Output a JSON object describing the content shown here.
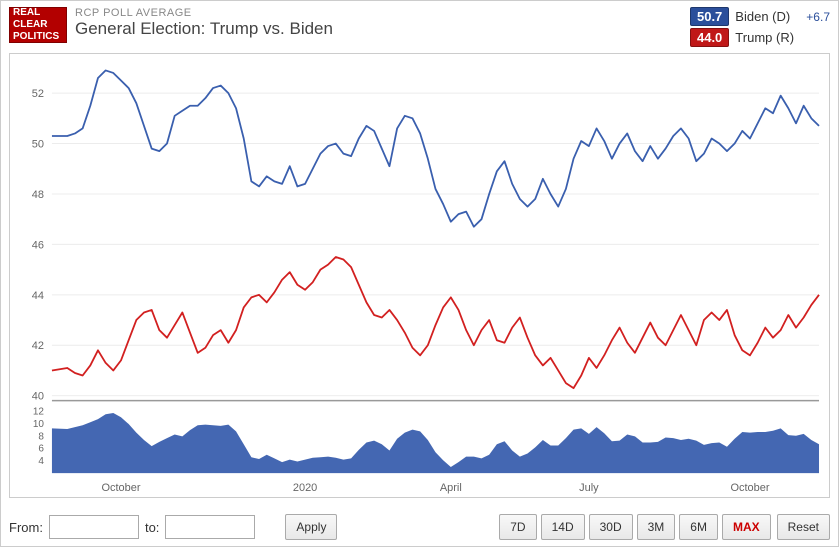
{
  "header": {
    "logo_lines": [
      "REAL",
      "CLEAR",
      "POLITICS"
    ],
    "subtitle": "RCP POLL AVERAGE",
    "title": "General Election: Trump vs. Biden"
  },
  "legend": [
    {
      "value": "50.7",
      "name": "Biden (D)",
      "spread": "+6.7",
      "box_color": "#2b4f9b",
      "spread_color": "#2b4f9b"
    },
    {
      "value": "44.0",
      "name": "Trump (R)",
      "spread": "",
      "box_color": "#c01818",
      "spread_color": "#c01818"
    }
  ],
  "chart": {
    "type": "line",
    "background_color": "#ffffff",
    "grid_color": "#ececec",
    "axis_text_color": "#666666",
    "axis_font_size": 11,
    "main": {
      "ylim": [
        40,
        53
      ],
      "yticks": [
        40,
        42,
        44,
        46,
        48,
        50,
        52
      ],
      "line_width": 1.8,
      "series": [
        {
          "name": "biden",
          "color": "#3a5fae",
          "points": [
            [
              0,
              50.3
            ],
            [
              2,
              50.3
            ],
            [
              3,
              50.4
            ],
            [
              4,
              50.6
            ],
            [
              5,
              51.5
            ],
            [
              6,
              52.6
            ],
            [
              7,
              52.9
            ],
            [
              8,
              52.8
            ],
            [
              9,
              52.5
            ],
            [
              10,
              52.2
            ],
            [
              11,
              51.6
            ],
            [
              12,
              50.7
            ],
            [
              13,
              49.8
            ],
            [
              14,
              49.7
            ],
            [
              15,
              50.0
            ],
            [
              16,
              51.1
            ],
            [
              17,
              51.3
            ],
            [
              18,
              51.5
            ],
            [
              19,
              51.5
            ],
            [
              20,
              51.8
            ],
            [
              21,
              52.2
            ],
            [
              22,
              52.3
            ],
            [
              23,
              52.0
            ],
            [
              24,
              51.4
            ],
            [
              25,
              50.2
            ],
            [
              26,
              48.5
            ],
            [
              27,
              48.3
            ],
            [
              28,
              48.7
            ],
            [
              29,
              48.5
            ],
            [
              30,
              48.4
            ],
            [
              31,
              49.1
            ],
            [
              32,
              48.3
            ],
            [
              33,
              48.4
            ],
            [
              34,
              49.0
            ],
            [
              35,
              49.6
            ],
            [
              36,
              49.9
            ],
            [
              37,
              50.0
            ],
            [
              38,
              49.6
            ],
            [
              39,
              49.5
            ],
            [
              40,
              50.2
            ],
            [
              41,
              50.7
            ],
            [
              42,
              50.5
            ],
            [
              43,
              49.8
            ],
            [
              44,
              49.1
            ],
            [
              45,
              50.6
            ],
            [
              46,
              51.1
            ],
            [
              47,
              51.0
            ],
            [
              48,
              50.4
            ],
            [
              49,
              49.4
            ],
            [
              50,
              48.2
            ],
            [
              51,
              47.6
            ],
            [
              52,
              46.9
            ],
            [
              53,
              47.2
            ],
            [
              54,
              47.3
            ],
            [
              55,
              46.7
            ],
            [
              56,
              47.0
            ],
            [
              57,
              48.0
            ],
            [
              58,
              48.9
            ],
            [
              59,
              49.3
            ],
            [
              60,
              48.4
            ],
            [
              61,
              47.8
            ],
            [
              62,
              47.5
            ],
            [
              63,
              47.8
            ],
            [
              64,
              48.6
            ],
            [
              65,
              48.0
            ],
            [
              66,
              47.5
            ],
            [
              67,
              48.2
            ],
            [
              68,
              49.4
            ],
            [
              69,
              50.1
            ],
            [
              70,
              49.9
            ],
            [
              71,
              50.6
            ],
            [
              72,
              50.1
            ],
            [
              73,
              49.4
            ],
            [
              74,
              50.0
            ],
            [
              75,
              50.4
            ],
            [
              76,
              49.7
            ],
            [
              77,
              49.3
            ],
            [
              78,
              49.9
            ],
            [
              79,
              49.4
            ],
            [
              80,
              49.8
            ],
            [
              81,
              50.3
            ],
            [
              82,
              50.6
            ],
            [
              83,
              50.2
            ],
            [
              84,
              49.3
            ],
            [
              85,
              49.6
            ],
            [
              86,
              50.2
            ],
            [
              87,
              50.0
            ],
            [
              88,
              49.7
            ],
            [
              89,
              50.0
            ],
            [
              90,
              50.5
            ],
            [
              91,
              50.2
            ],
            [
              92,
              50.8
            ],
            [
              93,
              51.4
            ],
            [
              94,
              51.2
            ],
            [
              95,
              51.9
            ],
            [
              96,
              51.4
            ],
            [
              97,
              50.8
            ],
            [
              98,
              51.5
            ],
            [
              99,
              51.0
            ],
            [
              100,
              50.7
            ]
          ]
        },
        {
          "name": "trump",
          "color": "#d22020",
          "points": [
            [
              0,
              41.0
            ],
            [
              2,
              41.1
            ],
            [
              3,
              40.9
            ],
            [
              4,
              40.8
            ],
            [
              5,
              41.2
            ],
            [
              6,
              41.8
            ],
            [
              7,
              41.3
            ],
            [
              8,
              41.0
            ],
            [
              9,
              41.4
            ],
            [
              10,
              42.2
            ],
            [
              11,
              43.0
            ],
            [
              12,
              43.3
            ],
            [
              13,
              43.4
            ],
            [
              14,
              42.6
            ],
            [
              15,
              42.3
            ],
            [
              16,
              42.8
            ],
            [
              17,
              43.3
            ],
            [
              18,
              42.5
            ],
            [
              19,
              41.7
            ],
            [
              20,
              41.9
            ],
            [
              21,
              42.4
            ],
            [
              22,
              42.6
            ],
            [
              23,
              42.1
            ],
            [
              24,
              42.6
            ],
            [
              25,
              43.5
            ],
            [
              26,
              43.9
            ],
            [
              27,
              44.0
            ],
            [
              28,
              43.7
            ],
            [
              29,
              44.1
            ],
            [
              30,
              44.6
            ],
            [
              31,
              44.9
            ],
            [
              32,
              44.4
            ],
            [
              33,
              44.2
            ],
            [
              34,
              44.5
            ],
            [
              35,
              45.0
            ],
            [
              36,
              45.2
            ],
            [
              37,
              45.5
            ],
            [
              38,
              45.4
            ],
            [
              39,
              45.1
            ],
            [
              40,
              44.4
            ],
            [
              41,
              43.7
            ],
            [
              42,
              43.2
            ],
            [
              43,
              43.1
            ],
            [
              44,
              43.4
            ],
            [
              45,
              43.0
            ],
            [
              46,
              42.5
            ],
            [
              47,
              41.9
            ],
            [
              48,
              41.6
            ],
            [
              49,
              42.0
            ],
            [
              50,
              42.8
            ],
            [
              51,
              43.5
            ],
            [
              52,
              43.9
            ],
            [
              53,
              43.4
            ],
            [
              54,
              42.6
            ],
            [
              55,
              42.0
            ],
            [
              56,
              42.6
            ],
            [
              57,
              43.0
            ],
            [
              58,
              42.2
            ],
            [
              59,
              42.1
            ],
            [
              60,
              42.7
            ],
            [
              61,
              43.1
            ],
            [
              62,
              42.3
            ],
            [
              63,
              41.6
            ],
            [
              64,
              41.2
            ],
            [
              65,
              41.5
            ],
            [
              66,
              41.0
            ],
            [
              67,
              40.5
            ],
            [
              68,
              40.3
            ],
            [
              69,
              40.8
            ],
            [
              70,
              41.5
            ],
            [
              71,
              41.1
            ],
            [
              72,
              41.6
            ],
            [
              73,
              42.2
            ],
            [
              74,
              42.7
            ],
            [
              75,
              42.1
            ],
            [
              76,
              41.7
            ],
            [
              77,
              42.3
            ],
            [
              78,
              42.9
            ],
            [
              79,
              42.3
            ],
            [
              80,
              42.0
            ],
            [
              81,
              42.6
            ],
            [
              82,
              43.2
            ],
            [
              83,
              42.6
            ],
            [
              84,
              42.0
            ],
            [
              85,
              43.0
            ],
            [
              86,
              43.3
            ],
            [
              87,
              43.0
            ],
            [
              88,
              43.4
            ],
            [
              89,
              42.4
            ],
            [
              90,
              41.8
            ],
            [
              91,
              41.6
            ],
            [
              92,
              42.1
            ],
            [
              93,
              42.7
            ],
            [
              94,
              42.3
            ],
            [
              95,
              42.6
            ],
            [
              96,
              43.2
            ],
            [
              97,
              42.7
            ],
            [
              98,
              43.1
            ],
            [
              99,
              43.6
            ],
            [
              100,
              44.0
            ]
          ]
        }
      ]
    },
    "spread": {
      "ylim": [
        2,
        13
      ],
      "yticks": [
        4,
        6,
        8,
        10,
        12
      ],
      "area_color": "#3a5fae",
      "divider_color": "#999999"
    },
    "x_labels": [
      {
        "x": 9,
        "text": "October"
      },
      {
        "x": 33,
        "text": "2020"
      },
      {
        "x": 52,
        "text": "April"
      },
      {
        "x": 70,
        "text": "July"
      },
      {
        "x": 91,
        "text": "October"
      }
    ]
  },
  "controls": {
    "from_label": "From:",
    "to_label": "to:",
    "from_value": "",
    "to_value": "",
    "apply_label": "Apply",
    "ranges": [
      "7D",
      "14D",
      "30D",
      "3M",
      "6M",
      "MAX"
    ],
    "active_range": "MAX",
    "reset_label": "Reset"
  }
}
